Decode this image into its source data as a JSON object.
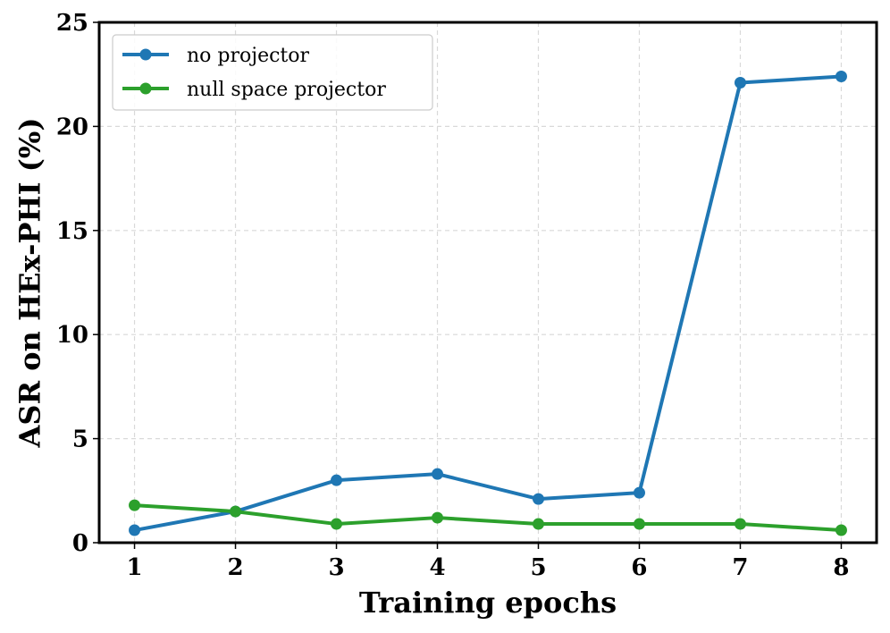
{
  "chart_data": {
    "type": "line",
    "title": "",
    "xlabel": "Training epochs",
    "ylabel": "ASR on HEx-PHI (%)",
    "x": [
      1,
      2,
      3,
      4,
      5,
      6,
      7,
      8
    ],
    "xlim": [
      0.65,
      8.35
    ],
    "ylim": [
      0,
      25
    ],
    "xticks": [
      1,
      2,
      3,
      4,
      5,
      6,
      7,
      8
    ],
    "yticks": [
      0,
      5,
      10,
      15,
      20,
      25
    ],
    "grid": true,
    "legend_position": "upper-left",
    "series": [
      {
        "name": "no projector",
        "color": "#1f77b4",
        "marker": "circle",
        "values": [
          0.6,
          1.5,
          3.0,
          3.3,
          2.1,
          2.4,
          22.1,
          22.4
        ]
      },
      {
        "name": "null space projector",
        "color": "#2ca02c",
        "marker": "circle",
        "values": [
          1.8,
          1.5,
          0.9,
          1.2,
          0.9,
          0.9,
          0.9,
          0.6
        ]
      }
    ]
  }
}
